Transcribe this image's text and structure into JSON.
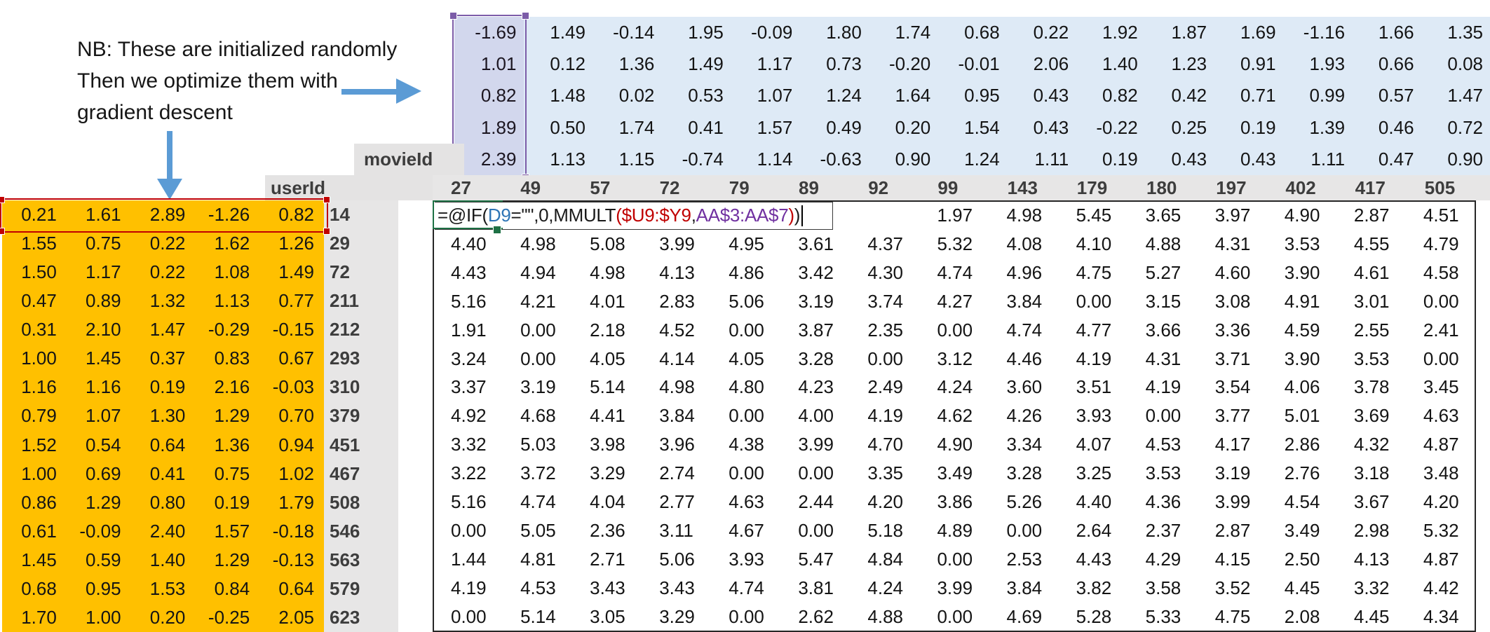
{
  "annotation": {
    "lines": [
      "NB: These are initialized randomly",
      "Then we optimize them with",
      "gradient descent"
    ]
  },
  "labels": {
    "movie_id": "movieId",
    "user_id": "userId"
  },
  "movie_ids": [
    "27",
    "49",
    "57",
    "72",
    "79",
    "89",
    "92",
    "99",
    "143",
    "179",
    "180",
    "197",
    "402",
    "417",
    "505"
  ],
  "user_ids": [
    "14",
    "29",
    "72",
    "211",
    "212",
    "293",
    "310",
    "379",
    "451",
    "467",
    "508",
    "546",
    "563",
    "579",
    "623"
  ],
  "movie_matrix": {
    "rows": [
      [
        "-1.69",
        "1.49",
        "-0.14",
        "1.95",
        "-0.09",
        "1.80",
        "1.74",
        "0.68",
        "0.22",
        "1.92",
        "1.87",
        "1.69",
        "-1.16",
        "1.66",
        "1.35"
      ],
      [
        "1.01",
        "0.12",
        "1.36",
        "1.49",
        "1.17",
        "0.73",
        "-0.20",
        "-0.01",
        "2.06",
        "1.40",
        "1.23",
        "0.91",
        "1.93",
        "0.66",
        "0.08"
      ],
      [
        "0.82",
        "1.48",
        "0.02",
        "0.53",
        "1.07",
        "1.24",
        "1.64",
        "0.95",
        "0.43",
        "0.82",
        "0.42",
        "0.71",
        "0.99",
        "0.57",
        "1.47"
      ],
      [
        "1.89",
        "0.50",
        "1.74",
        "0.41",
        "1.57",
        "0.49",
        "0.20",
        "1.54",
        "0.43",
        "-0.22",
        "0.25",
        "0.19",
        "1.39",
        "0.46",
        "0.72"
      ],
      [
        "2.39",
        "1.13",
        "1.15",
        "-0.74",
        "1.14",
        "-0.63",
        "0.90",
        "1.24",
        "1.11",
        "0.19",
        "0.43",
        "0.43",
        "1.11",
        "0.47",
        "0.90"
      ]
    ]
  },
  "user_matrix": {
    "rows": [
      [
        "0.21",
        "1.61",
        "2.89",
        "-1.26",
        "0.82"
      ],
      [
        "1.55",
        "0.75",
        "0.22",
        "1.62",
        "1.26"
      ],
      [
        "1.50",
        "1.17",
        "0.22",
        "1.08",
        "1.49"
      ],
      [
        "0.47",
        "0.89",
        "1.32",
        "1.13",
        "0.77"
      ],
      [
        "0.31",
        "2.10",
        "1.47",
        "-0.29",
        "-0.15"
      ],
      [
        "1.00",
        "1.45",
        "0.37",
        "0.83",
        "0.67"
      ],
      [
        "1.16",
        "1.16",
        "0.19",
        "2.16",
        "-0.03"
      ],
      [
        "0.79",
        "1.07",
        "1.30",
        "1.29",
        "0.70"
      ],
      [
        "1.52",
        "0.54",
        "0.64",
        "1.36",
        "0.94"
      ],
      [
        "1.00",
        "0.69",
        "0.41",
        "0.75",
        "1.02"
      ],
      [
        "0.86",
        "1.29",
        "0.80",
        "0.19",
        "1.79"
      ],
      [
        "0.61",
        "-0.09",
        "2.40",
        "1.57",
        "-0.18"
      ],
      [
        "1.45",
        "0.59",
        "1.40",
        "1.29",
        "-0.13"
      ],
      [
        "0.68",
        "0.95",
        "1.53",
        "0.84",
        "0.64"
      ],
      [
        "1.70",
        "1.00",
        "0.20",
        "-0.25",
        "2.05"
      ]
    ]
  },
  "predictions": {
    "row1_visible": [
      "1.97",
      "4.98",
      "5.45",
      "3.65",
      "3.97",
      "4.90",
      "2.87",
      "4.51"
    ],
    "rows": [
      [
        "4.40",
        "4.98",
        "5.08",
        "3.99",
        "4.95",
        "3.61",
        "4.37",
        "5.32",
        "4.08",
        "4.10",
        "4.88",
        "4.31",
        "3.53",
        "4.55",
        "4.79"
      ],
      [
        "4.43",
        "4.94",
        "4.98",
        "4.13",
        "4.86",
        "3.42",
        "4.30",
        "4.74",
        "4.96",
        "4.75",
        "5.27",
        "4.60",
        "3.90",
        "4.61",
        "4.58"
      ],
      [
        "5.16",
        "4.21",
        "4.01",
        "2.83",
        "5.06",
        "3.19",
        "3.74",
        "4.27",
        "3.84",
        "0.00",
        "3.15",
        "3.08",
        "4.91",
        "3.01",
        "0.00"
      ],
      [
        "1.91",
        "0.00",
        "2.18",
        "4.52",
        "0.00",
        "3.87",
        "2.35",
        "0.00",
        "4.74",
        "4.77",
        "3.66",
        "3.36",
        "4.59",
        "2.55",
        "2.41"
      ],
      [
        "3.24",
        "0.00",
        "4.05",
        "4.14",
        "4.05",
        "3.28",
        "0.00",
        "3.12",
        "4.46",
        "4.19",
        "4.31",
        "3.71",
        "3.90",
        "3.53",
        "0.00"
      ],
      [
        "3.37",
        "3.19",
        "5.14",
        "4.98",
        "4.80",
        "4.23",
        "2.49",
        "4.24",
        "3.60",
        "3.51",
        "4.19",
        "3.54",
        "4.06",
        "3.78",
        "3.45"
      ],
      [
        "4.92",
        "4.68",
        "4.41",
        "3.84",
        "0.00",
        "4.00",
        "4.19",
        "4.62",
        "4.26",
        "3.93",
        "0.00",
        "3.77",
        "5.01",
        "3.69",
        "4.63"
      ],
      [
        "3.32",
        "5.03",
        "3.98",
        "3.96",
        "4.38",
        "3.99",
        "4.70",
        "4.90",
        "3.34",
        "4.07",
        "4.53",
        "4.17",
        "2.86",
        "4.32",
        "4.87"
      ],
      [
        "3.22",
        "3.72",
        "3.29",
        "2.74",
        "0.00",
        "0.00",
        "3.35",
        "3.49",
        "3.28",
        "3.25",
        "3.53",
        "3.19",
        "2.76",
        "3.18",
        "3.48"
      ],
      [
        "5.16",
        "4.74",
        "4.04",
        "2.77",
        "4.63",
        "2.44",
        "4.20",
        "3.86",
        "5.26",
        "4.40",
        "4.36",
        "3.99",
        "4.54",
        "3.67",
        "4.20"
      ],
      [
        "0.00",
        "5.05",
        "2.36",
        "3.11",
        "4.67",
        "0.00",
        "5.18",
        "4.89",
        "0.00",
        "2.64",
        "2.37",
        "2.87",
        "3.49",
        "2.98",
        "5.32"
      ],
      [
        "1.44",
        "4.81",
        "2.71",
        "5.06",
        "3.93",
        "5.47",
        "4.84",
        "0.00",
        "2.53",
        "4.43",
        "4.29",
        "4.15",
        "2.50",
        "4.13",
        "4.87"
      ],
      [
        "4.19",
        "4.53",
        "3.43",
        "3.43",
        "4.74",
        "3.81",
        "4.24",
        "3.99",
        "3.84",
        "3.82",
        "3.58",
        "3.52",
        "4.45",
        "3.32",
        "4.42"
      ],
      [
        "0.00",
        "5.14",
        "3.05",
        "3.29",
        "0.00",
        "2.62",
        "4.88",
        "0.00",
        "4.69",
        "5.28",
        "5.33",
        "4.75",
        "2.08",
        "4.45",
        "4.34"
      ]
    ]
  },
  "formula": {
    "parts": [
      {
        "t": "=@IF(",
        "c": "black"
      },
      {
        "t": "D9",
        "c": "blue"
      },
      {
        "t": "=\"\",0,MMULT",
        "c": "black"
      },
      {
        "t": "($U9:$Y9",
        "c": "red"
      },
      {
        "t": ",",
        "c": "black"
      },
      {
        "t": "AA$3:AA$7",
        "c": "purple"
      },
      {
        "t": ")",
        "c": "red"
      },
      {
        "t": ")",
        "c": "black"
      }
    ]
  },
  "colors": {
    "movie_matrix_fill": "#DEEAF6",
    "user_matrix_fill": "#FFC000",
    "header_fill": "#E7E6E6",
    "selection_purple": "#7C5CA8",
    "selection_red": "#C00000",
    "edit_cell_green": "#1E7145",
    "arrow_blue": "#5B9BD5"
  }
}
